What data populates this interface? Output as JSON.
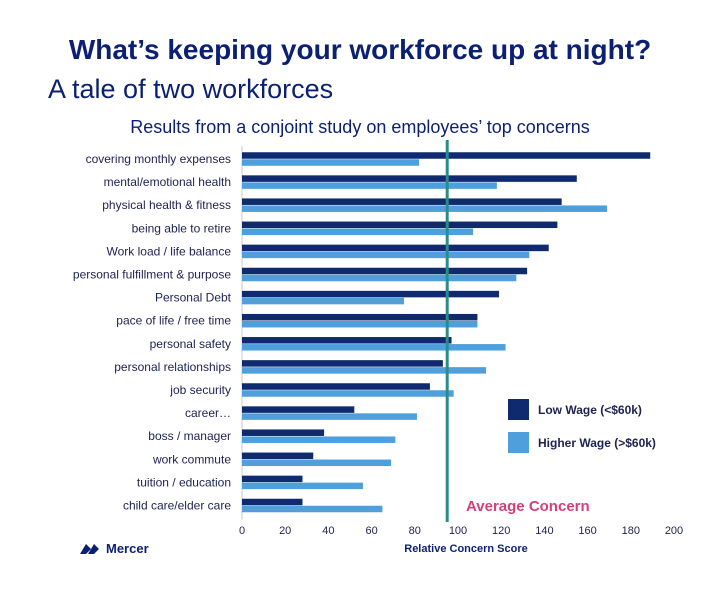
{
  "header": {
    "title": "What’s keeping your workforce up at night?",
    "subtitle": "A tale of two workforces",
    "study": "Results from a conjoint study on employees’ top concerns"
  },
  "logo": {
    "text": "Mercer",
    "icon": "mercer-logo-icon"
  },
  "colors": {
    "low_wage": "#0f2a6e",
    "higher_wage": "#4f9fdc",
    "average_line": "#2a8c8a",
    "average_label": "#d43f7c"
  },
  "chart_data": {
    "type": "bar",
    "orientation": "horizontal",
    "categories": [
      "covering monthly expenses",
      "mental/emotional health",
      "physical health & fitness",
      "being able to retire",
      "Work load / life balance",
      "personal fulfillment & purpose",
      "Personal Debt",
      "pace of life / free time",
      "personal safety",
      "personal relationships",
      "job security",
      "career…",
      "boss / manager",
      "work commute",
      "tuition / education",
      "child care/elder care"
    ],
    "series": [
      {
        "name": "Low Wage (<$60k)",
        "values": [
          189,
          155,
          148,
          146,
          142,
          132,
          119,
          109,
          97,
          93,
          87,
          52,
          38,
          33,
          28,
          28
        ]
      },
      {
        "name": "Higher Wage (>$60k)",
        "values": [
          82,
          118,
          169,
          107,
          133,
          127,
          75,
          109,
          122,
          113,
          98,
          81,
          71,
          69,
          56,
          65
        ]
      }
    ],
    "xlabel": "Relative Concern Score",
    "xlim": [
      0,
      200
    ],
    "xticks": [
      "0",
      "20",
      "40",
      "60",
      "80",
      "100",
      "120",
      "140",
      "160",
      "180",
      "200"
    ],
    "average": {
      "value": 95,
      "label": "Average Concern"
    },
    "legend": "right",
    "grid": false
  }
}
